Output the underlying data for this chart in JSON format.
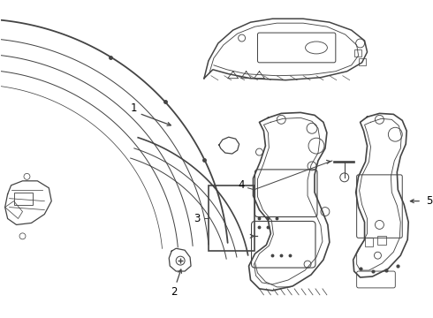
{
  "bg_color": "#ffffff",
  "line_color": "#444444",
  "lw": 0.9
}
